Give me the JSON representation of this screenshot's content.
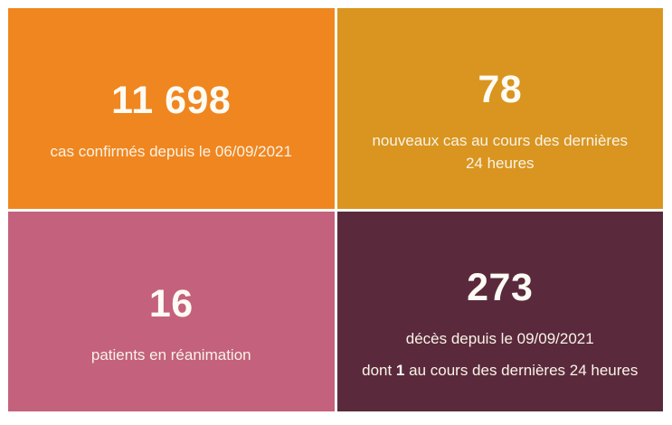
{
  "page": {
    "background": "#FFFFFF",
    "text_color": "#F9F3E7"
  },
  "tiles": {
    "confirmed": {
      "value": "11 698",
      "label": "cas confirmés depuis le 06/09/2021",
      "color": "#F0861F"
    },
    "new_cases": {
      "value": "78",
      "label_line1": "nouveaux cas au cours des dernières",
      "label_line2": "24 heures",
      "color": "#D9951F"
    },
    "reanimation": {
      "value": "16",
      "label": "patients en réanimation",
      "color": "#C4617C"
    },
    "deaths": {
      "value": "273",
      "label": "décès depuis le 09/09/2021",
      "line2_prefix": "dont ",
      "line2_bold": "1",
      "line2_suffix": " au cours des dernières 24 heures",
      "color": "#5A2A3C"
    }
  },
  "chart_data": {
    "type": "table",
    "title": "",
    "tiles": [
      {
        "metric": "cas confirmés depuis le 06/09/2021",
        "value": 11698,
        "display": "11 698",
        "color": "#F0861F",
        "position": "top-left"
      },
      {
        "metric": "nouveaux cas au cours des dernières 24 heures",
        "value": 78,
        "display": "78",
        "color": "#D9951F",
        "position": "top-right"
      },
      {
        "metric": "patients en réanimation",
        "value": 16,
        "display": "16",
        "color": "#C4617C",
        "position": "bottom-left"
      },
      {
        "metric": "décès depuis le 09/09/2021",
        "value": 273,
        "display": "273",
        "note": "dont 1 au cours des dernières 24 heures",
        "note_bold_value": 1,
        "color": "#5A2A3C",
        "position": "bottom-right"
      }
    ],
    "layout": "2x2 grid of big-number stat tiles, white gutters, no axes, no legend"
  }
}
